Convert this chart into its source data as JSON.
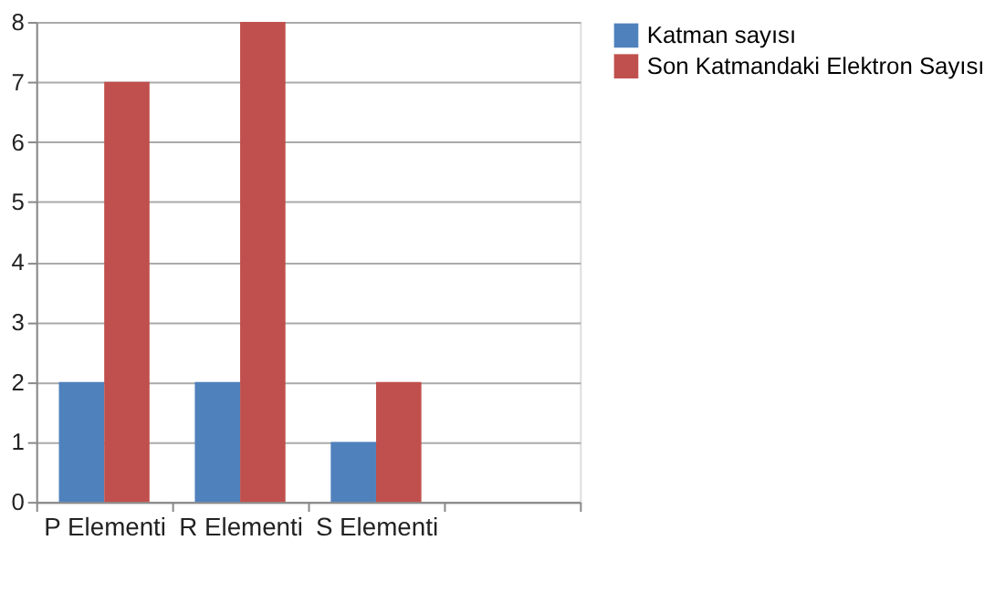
{
  "chart_data": {
    "type": "bar",
    "categories": [
      "P Elementi",
      "R Elementi",
      "S Elementi",
      null
    ],
    "series": [
      {
        "name": "Katman sayısı",
        "color": "#4f81bd",
        "values": [
          2,
          2,
          1,
          null
        ]
      },
      {
        "name": "Son Katmandaki Elektron Sayısı",
        "color": "#c0504d",
        "values": [
          7,
          8,
          2,
          null
        ]
      }
    ],
    "ylim": [
      0,
      8
    ],
    "yticks": [
      0,
      1,
      2,
      3,
      4,
      5,
      6,
      7,
      8
    ],
    "grid": "y",
    "legend": "right"
  }
}
